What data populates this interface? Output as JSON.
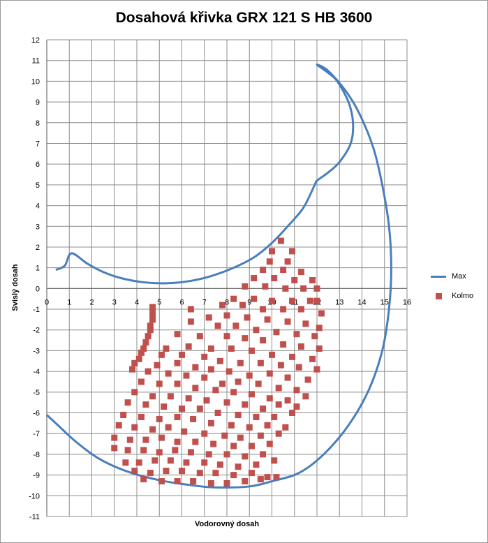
{
  "chart_data": {
    "type": "scatter",
    "title": "Dosahová křivka GRX 121 S HB 3600",
    "xlabel": "Vodorovný dosah",
    "ylabel": "Svislý dosah",
    "xlim": [
      0,
      16
    ],
    "ylim": [
      -11,
      12
    ],
    "xticks": [
      "0",
      "1",
      "2",
      "3",
      "4",
      "5",
      "6",
      "7",
      "8",
      "9",
      "10",
      "11",
      "12",
      "13",
      "14",
      "15",
      "16"
    ],
    "yticks": [
      "12",
      "11",
      "10",
      "9",
      "8",
      "7",
      "6",
      "5",
      "4",
      "3",
      "2",
      "1",
      "0",
      "-1",
      "-2",
      "-3",
      "-4",
      "-5",
      "-6",
      "-7",
      "-8",
      "-9",
      "-10",
      "-11"
    ],
    "grid": true,
    "legend_position": "right",
    "series": [
      {
        "name": "Max",
        "kind": "line",
        "color": "#4a7ebb",
        "segments": [
          [
            [
              0.4,
              0.9
            ],
            [
              0.8,
              1.1
            ],
            [
              1.1,
              1.7
            ],
            [
              1.8,
              1.2
            ],
            [
              2.5,
              0.8
            ],
            [
              3.3,
              0.5
            ],
            [
              4.3,
              0.3
            ],
            [
              5.3,
              0.25
            ],
            [
              6.3,
              0.35
            ],
            [
              7.3,
              0.6
            ],
            [
              8.3,
              1.0
            ],
            [
              9.2,
              1.5
            ],
            [
              10.0,
              2.2
            ],
            [
              10.7,
              3.0
            ],
            [
              11.4,
              3.9
            ],
            [
              11.9,
              5.0
            ],
            [
              12.0,
              5.2
            ],
            [
              12.5,
              5.6
            ],
            [
              13.0,
              6.1
            ],
            [
              13.5,
              7.0
            ],
            [
              13.6,
              8.0
            ],
            [
              13.4,
              9.0
            ],
            [
              12.9,
              10.0
            ],
            [
              12.5,
              10.4
            ],
            [
              12.0,
              10.8
            ],
            [
              12.5,
              10.5
            ],
            [
              13.3,
              9.5
            ],
            [
              13.9,
              8.4
            ],
            [
              14.5,
              6.8
            ],
            [
              14.9,
              5.0
            ],
            [
              15.2,
              3.0
            ],
            [
              15.3,
              1.0
            ],
            [
              15.2,
              -1.0
            ],
            [
              14.9,
              -3.0
            ],
            [
              14.3,
              -4.9
            ],
            [
              13.4,
              -6.6
            ],
            [
              12.3,
              -8.0
            ],
            [
              11.2,
              -8.9
            ],
            [
              10.0,
              -9.3
            ],
            [
              9.0,
              -9.55
            ],
            [
              7.5,
              -9.6
            ],
            [
              6.5,
              -9.5
            ],
            [
              5.0,
              -9.25
            ],
            [
              3.5,
              -8.8
            ],
            [
              2.3,
              -8.2
            ],
            [
              1.3,
              -7.4
            ],
            [
              0.5,
              -6.6
            ],
            [
              0.0,
              -6.1
            ]
          ]
        ]
      },
      {
        "name": "Kolmo",
        "kind": "scatter",
        "color": "#c0504d",
        "points": [
          [
            10.4,
            2.3
          ],
          [
            10.0,
            1.8
          ],
          [
            10.9,
            1.8
          ],
          [
            9.9,
            1.3
          ],
          [
            10.7,
            1.3
          ],
          [
            9.6,
            0.9
          ],
          [
            10.5,
            0.9
          ],
          [
            11.3,
            0.8
          ],
          [
            9.2,
            0.5
          ],
          [
            10.1,
            0.5
          ],
          [
            11.0,
            0.4
          ],
          [
            11.8,
            0.4
          ],
          [
            8.8,
            0.1
          ],
          [
            9.7,
            0.1
          ],
          [
            10.6,
            0.0
          ],
          [
            11.4,
            0.0
          ],
          [
            12.0,
            0.0
          ],
          [
            8.3,
            -0.5
          ],
          [
            9.2,
            -0.5
          ],
          [
            10.0,
            -0.6
          ],
          [
            10.9,
            -0.6
          ],
          [
            11.7,
            -0.6
          ],
          [
            12.0,
            -0.6
          ],
          [
            7.8,
            -0.8
          ],
          [
            8.7,
            -0.8
          ],
          [
            9.6,
            -1.0
          ],
          [
            10.5,
            -1.0
          ],
          [
            11.3,
            -1.0
          ],
          [
            12.2,
            -1.2
          ],
          [
            6.4,
            -1.0
          ],
          [
            7.2,
            -1.4
          ],
          [
            8.0,
            -1.3
          ],
          [
            8.9,
            -1.4
          ],
          [
            9.8,
            -1.5
          ],
          [
            10.7,
            -1.6
          ],
          [
            11.5,
            -1.7
          ],
          [
            12.1,
            -1.9
          ],
          [
            6.4,
            -1.6
          ],
          [
            7.6,
            -1.8
          ],
          [
            8.4,
            -1.8
          ],
          [
            9.3,
            -2.0
          ],
          [
            10.2,
            -2.1
          ],
          [
            11.1,
            -2.2
          ],
          [
            11.9,
            -2.3
          ],
          [
            5.8,
            -2.2
          ],
          [
            6.8,
            -2.3
          ],
          [
            8.0,
            -2.3
          ],
          [
            8.8,
            -2.4
          ],
          [
            9.6,
            -2.5
          ],
          [
            10.5,
            -2.7
          ],
          [
            11.3,
            -2.8
          ],
          [
            12.1,
            -2.9
          ],
          [
            5.3,
            -2.9
          ],
          [
            6.3,
            -2.8
          ],
          [
            7.3,
            -2.9
          ],
          [
            8.2,
            -2.9
          ],
          [
            9.1,
            -3.0
          ],
          [
            10.0,
            -3.2
          ],
          [
            10.9,
            -3.3
          ],
          [
            11.8,
            -3.4
          ],
          [
            5.1,
            -3.2
          ],
          [
            6.0,
            -3.2
          ],
          [
            7.0,
            -3.3
          ],
          [
            7.7,
            -3.5
          ],
          [
            8.6,
            -3.6
          ],
          [
            9.5,
            -3.6
          ],
          [
            10.4,
            -3.7
          ],
          [
            11.2,
            -3.8
          ],
          [
            12.0,
            -3.9
          ],
          [
            4.9,
            -3.7
          ],
          [
            5.8,
            -3.6
          ],
          [
            6.6,
            -3.8
          ],
          [
            7.3,
            -3.9
          ],
          [
            8.1,
            -4.0
          ],
          [
            9.0,
            -4.2
          ],
          [
            9.9,
            -4.1
          ],
          [
            10.7,
            -4.3
          ],
          [
            11.6,
            -4.4
          ],
          [
            4.5,
            -4.0
          ],
          [
            5.4,
            -4.1
          ],
          [
            6.2,
            -4.2
          ],
          [
            7.0,
            -4.3
          ],
          [
            7.8,
            -4.6
          ],
          [
            8.5,
            -4.5
          ],
          [
            9.4,
            -4.6
          ],
          [
            10.3,
            -4.8
          ],
          [
            11.1,
            -4.9
          ],
          [
            4.2,
            -4.5
          ],
          [
            5.0,
            -4.6
          ],
          [
            5.8,
            -4.6
          ],
          [
            6.6,
            -4.8
          ],
          [
            7.5,
            -4.9
          ],
          [
            8.3,
            -5.0
          ],
          [
            9.1,
            -5.1
          ],
          [
            9.9,
            -5.3
          ],
          [
            10.7,
            -5.4
          ],
          [
            11.5,
            -5.2
          ],
          [
            3.9,
            -5.0
          ],
          [
            4.7,
            -5.2
          ],
          [
            5.5,
            -5.2
          ],
          [
            6.3,
            -5.3
          ],
          [
            7.1,
            -5.4
          ],
          [
            8.0,
            -5.5
          ],
          [
            8.8,
            -5.6
          ],
          [
            9.6,
            -5.8
          ],
          [
            10.3,
            -5.6
          ],
          [
            11.1,
            -5.7
          ],
          [
            3.6,
            -5.5
          ],
          [
            4.4,
            -5.6
          ],
          [
            5.2,
            -5.7
          ],
          [
            6.0,
            -5.8
          ],
          [
            6.8,
            -5.8
          ],
          [
            7.6,
            -6.0
          ],
          [
            8.5,
            -6.1
          ],
          [
            9.3,
            -6.2
          ],
          [
            10.1,
            -6.2
          ],
          [
            10.9,
            -6.0
          ],
          [
            3.4,
            -6.1
          ],
          [
            4.2,
            -6.2
          ],
          [
            5.0,
            -6.3
          ],
          [
            5.8,
            -6.2
          ],
          [
            6.5,
            -6.3
          ],
          [
            7.3,
            -6.5
          ],
          [
            8.2,
            -6.6
          ],
          [
            9.0,
            -6.7
          ],
          [
            9.8,
            -6.6
          ],
          [
            10.6,
            -6.7
          ],
          [
            3.2,
            -6.6
          ],
          [
            3.9,
            -6.7
          ],
          [
            4.7,
            -6.8
          ],
          [
            5.4,
            -6.7
          ],
          [
            6.1,
            -6.9
          ],
          [
            7.0,
            -7.0
          ],
          [
            7.9,
            -7.1
          ],
          [
            8.6,
            -7.2
          ],
          [
            9.5,
            -7.1
          ],
          [
            10.3,
            -7.0
          ],
          [
            3.0,
            -7.2
          ],
          [
            3.7,
            -7.3
          ],
          [
            4.4,
            -7.3
          ],
          [
            5.1,
            -7.2
          ],
          [
            5.8,
            -7.4
          ],
          [
            6.6,
            -7.4
          ],
          [
            7.4,
            -7.5
          ],
          [
            8.3,
            -7.6
          ],
          [
            9.1,
            -7.6
          ],
          [
            9.9,
            -7.5
          ],
          [
            3.0,
            -7.7
          ],
          [
            3.6,
            -7.8
          ],
          [
            4.3,
            -7.8
          ],
          [
            5.0,
            -7.9
          ],
          [
            5.7,
            -7.8
          ],
          [
            6.4,
            -7.9
          ],
          [
            7.2,
            -8.0
          ],
          [
            8.0,
            -8.0
          ],
          [
            8.8,
            -8.1
          ],
          [
            9.6,
            -8.0
          ],
          [
            3.5,
            -8.4
          ],
          [
            4.1,
            -8.4
          ],
          [
            4.8,
            -8.3
          ],
          [
            5.5,
            -8.3
          ],
          [
            6.2,
            -8.4
          ],
          [
            7.0,
            -8.4
          ],
          [
            7.7,
            -8.5
          ],
          [
            8.5,
            -8.6
          ],
          [
            9.3,
            -8.5
          ],
          [
            10.1,
            -8.3
          ],
          [
            3.9,
            -8.8
          ],
          [
            4.6,
            -8.9
          ],
          [
            5.3,
            -8.8
          ],
          [
            6.0,
            -8.8
          ],
          [
            6.8,
            -8.9
          ],
          [
            7.5,
            -8.9
          ],
          [
            8.3,
            -9.0
          ],
          [
            9.1,
            -8.9
          ],
          [
            9.8,
            -9.1
          ],
          [
            4.3,
            -9.2
          ],
          [
            5.1,
            -9.3
          ],
          [
            5.8,
            -9.3
          ],
          [
            6.5,
            -9.3
          ],
          [
            7.3,
            -9.4
          ],
          [
            8.0,
            -9.4
          ],
          [
            8.8,
            -9.3
          ],
          [
            9.5,
            -9.2
          ],
          [
            10.2,
            -9.1
          ],
          [
            4.7,
            -0.9
          ],
          [
            4.7,
            -1.2
          ],
          [
            4.7,
            -1.5
          ],
          [
            4.6,
            -1.8
          ],
          [
            4.6,
            -2.0
          ],
          [
            4.5,
            -2.3
          ],
          [
            4.4,
            -2.6
          ],
          [
            4.3,
            -2.9
          ],
          [
            4.2,
            -3.1
          ],
          [
            4.1,
            -3.4
          ],
          [
            3.9,
            -3.6
          ],
          [
            3.8,
            -3.9
          ]
        ]
      }
    ]
  }
}
